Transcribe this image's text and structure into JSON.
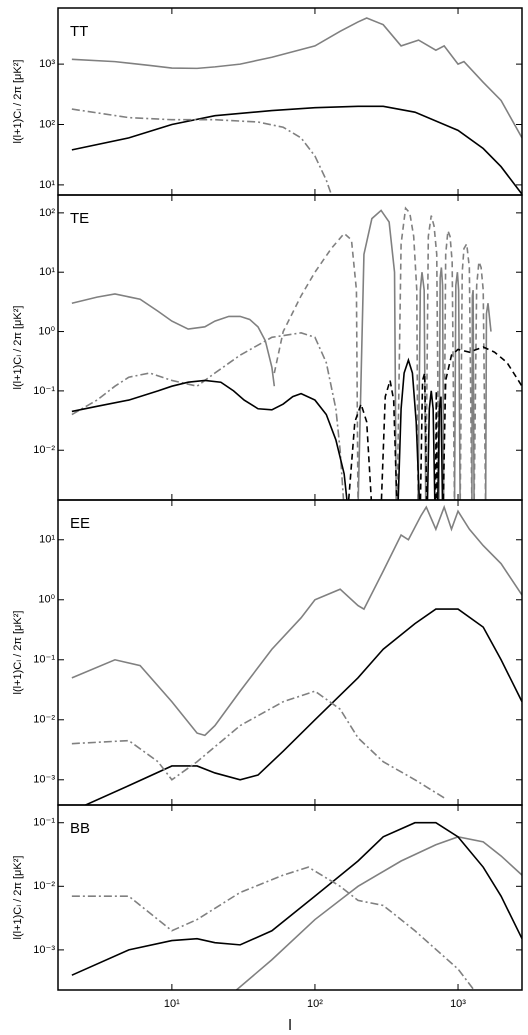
{
  "chart_data": [
    {
      "type": "line",
      "title": "TT",
      "ylabel": "l(l+1)Cₗ / 2π  [μK²]",
      "xscale": "log",
      "yscale": "log",
      "xlim": [
        1.6,
        2800
      ],
      "ylim": [
        6.8,
        8500
      ],
      "xticks": [
        10,
        100,
        1000
      ],
      "yticks": [
        {
          "value": 10,
          "label": "10¹"
        },
        {
          "value": 100,
          "label": "10²"
        },
        {
          "value": 1000,
          "label": "10³"
        }
      ],
      "series": [
        {
          "color": "#808080",
          "style": "solid",
          "x": [
            2,
            4,
            7,
            10,
            15,
            20,
            30,
            50,
            100,
            150,
            200,
            230,
            300,
            400,
            530,
            700,
            800,
            1000,
            1100,
            1500,
            2000,
            2800
          ],
          "values": [
            1200,
            1100,
            950,
            860,
            850,
            900,
            1000,
            1300,
            2000,
            3500,
            5000,
            5800,
            4500,
            2000,
            2500,
            1700,
            2000,
            1000,
            1100,
            500,
            250,
            60
          ]
        },
        {
          "color": "#000000",
          "style": "solid",
          "x": [
            2,
            5,
            10,
            20,
            50,
            100,
            200,
            300,
            500,
            1000,
            1500,
            2000,
            2800
          ],
          "values": [
            38,
            60,
            100,
            140,
            170,
            190,
            200,
            200,
            160,
            80,
            40,
            20,
            7
          ]
        },
        {
          "color": "#808080",
          "style": "dashdot",
          "x": [
            2,
            5,
            10,
            20,
            40,
            60,
            80,
            100,
            120,
            130
          ],
          "values": [
            180,
            130,
            120,
            120,
            110,
            90,
            60,
            30,
            12,
            7
          ]
        }
      ]
    },
    {
      "type": "line",
      "title": "TE",
      "ylabel": "l(l+1)Cₗ / 2π  [μK²]",
      "xscale": "log",
      "yscale": "log",
      "xlim": [
        1.6,
        2800
      ],
      "ylim": [
        0.00145,
        200
      ],
      "xticks": [
        10,
        100,
        1000
      ],
      "yticks": [
        {
          "value": 0.01,
          "label": "10⁻²"
        },
        {
          "value": 0.1,
          "label": "10⁻¹"
        },
        {
          "value": 1,
          "label": "10⁰"
        },
        {
          "value": 10,
          "label": "10¹"
        },
        {
          "value": 100,
          "label": "10²"
        }
      ],
      "series": [
        {
          "color": "#808080",
          "style": "solid",
          "x": [
            2,
            3,
            4,
            6,
            8,
            10,
            13,
            17,
            20,
            25,
            30,
            35,
            40,
            45,
            50,
            52,
            100,
            200,
            220,
            250,
            290,
            330,
            360,
            370,
            450,
            525,
            545,
            560,
            580,
            595,
            700,
            735,
            750,
            765,
            780,
            795,
            900,
            945,
            965,
            990,
            1010,
            1035,
            1150,
            1250,
            1260,
            1275,
            1295,
            1400,
            1560,
            1580,
            1620,
            1700
          ],
          "values": [
            3,
            3.8,
            4.3,
            3.5,
            2.2,
            1.5,
            1.1,
            1.2,
            1.5,
            1.8,
            1.8,
            1.6,
            1.2,
            0.7,
            0.25,
            0.12,
            null,
            0.001,
            20,
            80,
            110,
            70,
            10,
            0.001,
            null,
            0.001,
            5,
            10,
            5,
            0.001,
            null,
            0.001,
            8,
            12,
            6,
            0.001,
            null,
            0.001,
            6,
            10,
            5,
            0.001,
            null,
            0.001,
            4,
            5,
            0.001,
            null,
            0.001,
            2,
            3,
            1
          ]
        },
        {
          "color": "#808080",
          "style": "dashed",
          "x": [
            52,
            60,
            80,
            100,
            130,
            160,
            180,
            195,
            200,
            300,
            375,
            400,
            430,
            460,
            490,
            515,
            525,
            560,
            595,
            620,
            650,
            680,
            710,
            735,
            770,
            795,
            820,
            850,
            880,
            910,
            945,
            990,
            1035,
            1070,
            1100,
            1150,
            1200,
            1250,
            1280,
            1295,
            1350,
            1400,
            1450,
            1500,
            1560
          ],
          "values": [
            0.2,
            1,
            4,
            10,
            25,
            45,
            35,
            5,
            0.001,
            null,
            0.001,
            30,
            120,
            100,
            40,
            5,
            0.001,
            null,
            0.001,
            40,
            90,
            60,
            20,
            0.001,
            null,
            0.001,
            20,
            50,
            40,
            15,
            0.001,
            null,
            0.001,
            10,
            25,
            30,
            12,
            0.001,
            null,
            0.001,
            6,
            15,
            12,
            5,
            0.001
          ]
        },
        {
          "color": "#808080",
          "style": "dashdot",
          "x": [
            2,
            3,
            4,
            5,
            7,
            10,
            15,
            20,
            30,
            50,
            80,
            100,
            120,
            140,
            150,
            160
          ],
          "values": [
            0.04,
            0.07,
            0.12,
            0.17,
            0.2,
            0.15,
            0.12,
            0.2,
            0.4,
            0.8,
            0.95,
            0.8,
            0.3,
            0.05,
            0.01,
            0.001
          ]
        },
        {
          "color": "#000000",
          "style": "solid",
          "x": [
            2,
            3,
            5,
            8,
            10,
            13,
            17,
            22,
            27,
            32,
            40,
            50,
            60,
            70,
            80,
            100,
            120,
            140,
            160,
            170,
            250,
            380,
            400,
            420,
            450,
            480,
            510,
            540,
            600,
            610,
            630,
            650,
            670,
            690,
            700,
            720,
            740,
            760,
            780
          ],
          "values": [
            0.045,
            0.055,
            0.07,
            0.1,
            0.12,
            0.14,
            0.15,
            0.14,
            0.1,
            0.07,
            0.05,
            0.048,
            0.06,
            0.08,
            0.09,
            0.07,
            0.04,
            0.015,
            0.004,
            0.001,
            null,
            0.001,
            0.05,
            0.2,
            0.33,
            0.2,
            0.03,
            0.001,
            null,
            0.001,
            0.05,
            0.1,
            0.05,
            0.001,
            null,
            0.001,
            0.05,
            0.08,
            0.001
          ]
        },
        {
          "color": "#000000",
          "style": "dashed",
          "x": [
            170,
            190,
            210,
            230,
            250,
            270,
            290,
            310,
            335,
            355,
            375,
            450,
            545,
            565,
            585,
            605,
            650,
            695,
            705,
            715,
            750,
            785,
            820,
            900,
            1000,
            1200,
            1500,
            1800,
            2200,
            2800
          ],
          "values": [
            0.001,
            0.03,
            0.06,
            0.03,
            0.001,
            null,
            0.001,
            0.08,
            0.15,
            0.07,
            0.001,
            null,
            0.001,
            0.15,
            0.2,
            0.001,
            null,
            0.001,
            0.1,
            0.001,
            null,
            0.001,
            0.15,
            0.4,
            0.5,
            0.45,
            0.55,
            0.45,
            0.3,
            0.12
          ]
        }
      ]
    },
    {
      "type": "line",
      "title": "EE",
      "ylabel": "l(l+1)Cₗ / 2π  [μK²]",
      "xscale": "log",
      "yscale": "log",
      "xlim": [
        1.6,
        2800
      ],
      "ylim": [
        0.00038,
        46
      ],
      "xticks": [
        10,
        100,
        1000
      ],
      "yticks": [
        {
          "value": 0.001,
          "label": "10⁻³"
        },
        {
          "value": 0.01,
          "label": "10⁻²"
        },
        {
          "value": 0.1,
          "label": "10⁻¹"
        },
        {
          "value": 1,
          "label": "10⁰"
        },
        {
          "value": 10,
          "label": "10¹"
        }
      ],
      "series": [
        {
          "color": "#808080",
          "style": "solid",
          "x": [
            2,
            4,
            6,
            10,
            15,
            17,
            20,
            30,
            50,
            80,
            100,
            150,
            200,
            220,
            300,
            400,
            450,
            550,
            600,
            700,
            800,
            900,
            1000,
            1200,
            1500,
            2000,
            2800
          ],
          "values": [
            0.05,
            0.1,
            0.08,
            0.02,
            0.006,
            0.0055,
            0.008,
            0.03,
            0.15,
            0.5,
            1,
            1.5,
            0.8,
            0.7,
            3,
            12,
            10,
            25,
            35,
            15,
            35,
            15,
            30,
            15,
            8,
            4,
            1.2
          ]
        },
        {
          "color": "#000000",
          "style": "solid",
          "x": [
            2,
            5,
            10,
            15,
            20,
            30,
            40,
            60,
            100,
            200,
            300,
            500,
            700,
            1000,
            1500,
            2000,
            2800
          ],
          "values": [
            0.0003,
            0.0008,
            0.0017,
            0.0017,
            0.0013,
            0.001,
            0.0012,
            0.003,
            0.01,
            0.05,
            0.15,
            0.4,
            0.7,
            0.7,
            0.35,
            0.1,
            0.02
          ]
        },
        {
          "color": "#808080",
          "style": "dashdot",
          "x": [
            2,
            5,
            8,
            10,
            15,
            30,
            60,
            100,
            150,
            200,
            300,
            500,
            800
          ],
          "values": [
            0.004,
            0.0045,
            0.002,
            0.001,
            0.002,
            0.008,
            0.02,
            0.03,
            0.015,
            0.005,
            0.002,
            0.001,
            0.0005
          ]
        }
      ]
    },
    {
      "type": "line",
      "title": "BB",
      "ylabel": "l(l+1)Cₗ / 2π  [μK²]",
      "xlabel": "l",
      "xscale": "log",
      "yscale": "log",
      "xlim": [
        1.6,
        2800
      ],
      "ylim": [
        0.000234,
        0.19
      ],
      "xticks": [
        {
          "value": 10,
          "label": "10¹"
        },
        {
          "value": 100,
          "label": "10²"
        },
        {
          "value": 1000,
          "label": "10³"
        }
      ],
      "yticks": [
        {
          "value": 0.001,
          "label": "10⁻³"
        },
        {
          "value": 0.01,
          "label": "10⁻²"
        },
        {
          "value": 0.1,
          "label": "10⁻¹"
        }
      ],
      "series": [
        {
          "color": "#808080",
          "style": "solid",
          "x": [
            28,
            50,
            100,
            200,
            400,
            700,
            1000,
            1500,
            2000,
            2800
          ],
          "values": [
            0.00023,
            0.0007,
            0.003,
            0.01,
            0.025,
            0.045,
            0.06,
            0.05,
            0.03,
            0.015
          ]
        },
        {
          "color": "#000000",
          "style": "solid",
          "x": [
            2,
            5,
            10,
            15,
            20,
            30,
            50,
            100,
            200,
            300,
            500,
            700,
            1000,
            1500,
            2000,
            2800
          ],
          "values": [
            0.0004,
            0.001,
            0.0014,
            0.0015,
            0.0013,
            0.0012,
            0.002,
            0.007,
            0.025,
            0.06,
            0.1,
            0.1,
            0.06,
            0.02,
            0.007,
            0.0015
          ]
        },
        {
          "color": "#808080",
          "style": "dashdot",
          "x": [
            2,
            5,
            8,
            10,
            15,
            30,
            60,
            90,
            150,
            200,
            300,
            500,
            1000,
            1300
          ],
          "values": [
            0.007,
            0.007,
            0.003,
            0.002,
            0.003,
            0.008,
            0.015,
            0.02,
            0.01,
            0.006,
            0.005,
            0.002,
            0.0005,
            0.00023
          ]
        }
      ]
    }
  ]
}
